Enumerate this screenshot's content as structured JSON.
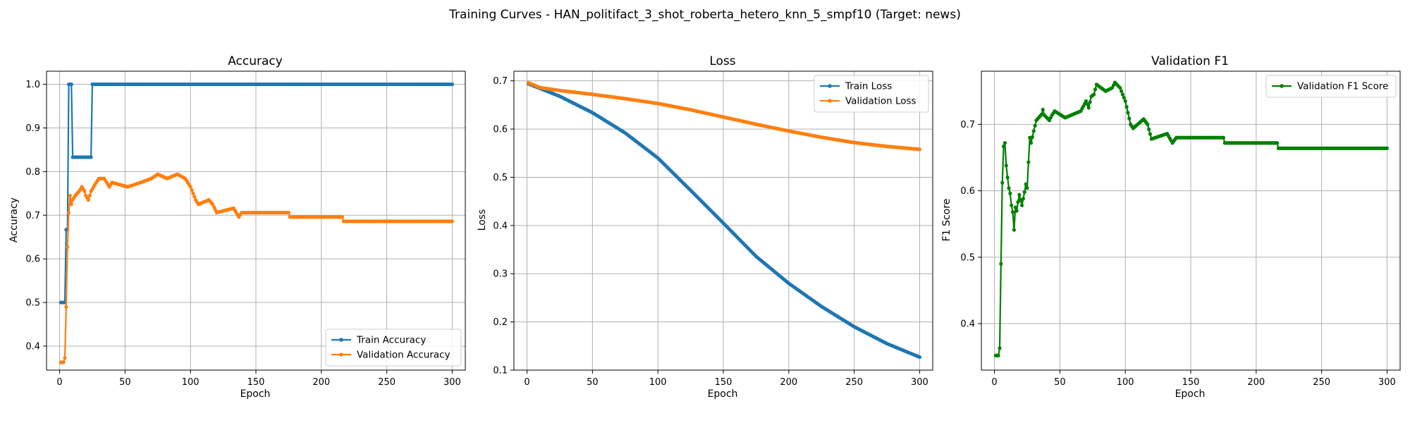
{
  "suptitle": "Training Curves - HAN_politifact_3_shot_roberta_hetero_knn_5_smpf10 (Target: news)",
  "chart_data": [
    {
      "type": "line",
      "title": "Accuracy",
      "xlabel": "Epoch",
      "ylabel": "Accuracy",
      "xlim": [
        -10,
        310
      ],
      "ylim": [
        0.345,
        1.03
      ],
      "xticks": [
        0,
        50,
        100,
        150,
        200,
        250,
        300
      ],
      "yticks": [
        0.4,
        0.5,
        0.6,
        0.7,
        0.8,
        0.9,
        1.0
      ],
      "ytick_labels": [
        "0.4",
        "0.5",
        "0.6",
        "0.7",
        "0.8",
        "0.9",
        "1.0"
      ],
      "grid": true,
      "legend_position": "lower-right",
      "series": [
        {
          "name": "Train Accuracy",
          "color": "#1f77b4",
          "points": [
            [
              1,
              0.5
            ],
            [
              4,
              0.5
            ],
            [
              5,
              0.667
            ],
            [
              6,
              0.667
            ],
            [
              7,
              1.0
            ],
            [
              9,
              1.0
            ],
            [
              10,
              0.833
            ],
            [
              24,
              0.833
            ],
            [
              25,
              1.0
            ],
            [
              300,
              1.0
            ]
          ]
        },
        {
          "name": "Validation Accuracy",
          "color": "#ff7f0e",
          "points": [
            [
              1,
              0.363
            ],
            [
              3,
              0.363
            ],
            [
              4,
              0.373
            ],
            [
              5,
              0.49
            ],
            [
              6,
              0.627
            ],
            [
              7,
              0.706
            ],
            [
              8,
              0.745
            ],
            [
              9,
              0.725
            ],
            [
              10,
              0.735
            ],
            [
              12,
              0.745
            ],
            [
              15,
              0.755
            ],
            [
              17,
              0.765
            ],
            [
              19,
              0.755
            ],
            [
              20,
              0.745
            ],
            [
              22,
              0.735
            ],
            [
              24,
              0.755
            ],
            [
              26,
              0.765
            ],
            [
              28,
              0.775
            ],
            [
              30,
              0.784
            ],
            [
              34,
              0.784
            ],
            [
              36,
              0.775
            ],
            [
              38,
              0.765
            ],
            [
              40,
              0.775
            ],
            [
              52,
              0.765
            ],
            [
              62,
              0.775
            ],
            [
              70,
              0.784
            ],
            [
              75,
              0.794
            ],
            [
              82,
              0.784
            ],
            [
              90,
              0.794
            ],
            [
              96,
              0.784
            ],
            [
              100,
              0.765
            ],
            [
              104,
              0.735
            ],
            [
              106,
              0.725
            ],
            [
              114,
              0.735
            ],
            [
              117,
              0.725
            ],
            [
              120,
              0.706
            ],
            [
              133,
              0.716
            ],
            [
              137,
              0.696
            ],
            [
              139,
              0.706
            ],
            [
              175,
              0.706
            ],
            [
              176,
              0.696
            ],
            [
              216,
              0.696
            ],
            [
              217,
              0.686
            ],
            [
              300,
              0.686
            ]
          ]
        }
      ]
    },
    {
      "type": "line",
      "title": "Loss",
      "xlabel": "Epoch",
      "ylabel": "Loss",
      "xlim": [
        -10,
        310
      ],
      "ylim": [
        0.1,
        0.72
      ],
      "xticks": [
        0,
        50,
        100,
        150,
        200,
        250,
        300
      ],
      "yticks": [
        0.1,
        0.2,
        0.3,
        0.4,
        0.5,
        0.6,
        0.7
      ],
      "ytick_labels": [
        "0.1",
        "0.2",
        "0.3",
        "0.4",
        "0.5",
        "0.6",
        "0.7"
      ],
      "grid": true,
      "legend_position": "upper-right",
      "series": [
        {
          "name": "Train Loss",
          "color": "#1f77b4",
          "points": [
            [
              1,
              0.694
            ],
            [
              25,
              0.668
            ],
            [
              50,
              0.634
            ],
            [
              75,
              0.592
            ],
            [
              100,
              0.54
            ],
            [
              125,
              0.473
            ],
            [
              150,
              0.405
            ],
            [
              175,
              0.336
            ],
            [
              200,
              0.28
            ],
            [
              225,
              0.232
            ],
            [
              250,
              0.19
            ],
            [
              275,
              0.155
            ],
            [
              300,
              0.127
            ]
          ]
        },
        {
          "name": "Validation Loss",
          "color": "#ff7f0e",
          "points": [
            [
              1,
              0.696
            ],
            [
              10,
              0.686
            ],
            [
              25,
              0.68
            ],
            [
              50,
              0.672
            ],
            [
              75,
              0.663
            ],
            [
              100,
              0.653
            ],
            [
              125,
              0.64
            ],
            [
              150,
              0.625
            ],
            [
              175,
              0.61
            ],
            [
              200,
              0.596
            ],
            [
              225,
              0.583
            ],
            [
              250,
              0.572
            ],
            [
              275,
              0.564
            ],
            [
              300,
              0.558
            ]
          ]
        }
      ]
    },
    {
      "type": "line",
      "title": "Validation F1",
      "xlabel": "Epoch",
      "ylabel": "F1 Score",
      "xlim": [
        -10,
        310
      ],
      "ylim": [
        0.33,
        0.78
      ],
      "xticks": [
        0,
        50,
        100,
        150,
        200,
        250,
        300
      ],
      "yticks": [
        0.4,
        0.5,
        0.6,
        0.7
      ],
      "ytick_labels": [
        "0.4",
        "0.5",
        "0.6",
        "0.7"
      ],
      "grid": true,
      "legend_position": "upper-right",
      "series": [
        {
          "name": "Validation F1 Score",
          "color": "#008000",
          "points": [
            [
              1,
              0.352
            ],
            [
              3,
              0.352
            ],
            [
              4,
              0.363
            ],
            [
              5,
              0.49
            ],
            [
              6,
              0.612
            ],
            [
              7,
              0.667
            ],
            [
              8,
              0.672
            ],
            [
              9,
              0.638
            ],
            [
              10,
              0.62
            ],
            [
              11,
              0.604
            ],
            [
              12,
              0.596
            ],
            [
              13,
              0.578
            ],
            [
              14,
              0.568
            ],
            [
              15,
              0.541
            ],
            [
              16,
              0.575
            ],
            [
              17,
              0.57
            ],
            [
              18,
              0.583
            ],
            [
              19,
              0.594
            ],
            [
              20,
              0.586
            ],
            [
              21,
              0.578
            ],
            [
              22,
              0.588
            ],
            [
              23,
              0.598
            ],
            [
              24,
              0.61
            ],
            [
              25,
              0.604
            ],
            [
              26,
              0.643
            ],
            [
              27,
              0.68
            ],
            [
              28,
              0.672
            ],
            [
              30,
              0.69
            ],
            [
              32,
              0.706
            ],
            [
              36,
              0.715
            ],
            [
              37,
              0.722
            ],
            [
              38,
              0.714
            ],
            [
              42,
              0.706
            ],
            [
              44,
              0.714
            ],
            [
              46,
              0.72
            ],
            [
              54,
              0.71
            ],
            [
              66,
              0.72
            ],
            [
              70,
              0.735
            ],
            [
              72,
              0.725
            ],
            [
              74,
              0.742
            ],
            [
              76,
              0.745
            ],
            [
              78,
              0.76
            ],
            [
              85,
              0.75
            ],
            [
              90,
              0.755
            ],
            [
              92,
              0.763
            ],
            [
              96,
              0.755
            ],
            [
              100,
              0.735
            ],
            [
              104,
              0.7
            ],
            [
              106,
              0.694
            ],
            [
              114,
              0.708
            ],
            [
              117,
              0.7
            ],
            [
              120,
              0.678
            ],
            [
              132,
              0.686
            ],
            [
              136,
              0.672
            ],
            [
              139,
              0.68
            ],
            [
              175,
              0.68
            ],
            [
              176,
              0.672
            ],
            [
              216,
              0.672
            ],
            [
              217,
              0.664
            ],
            [
              300,
              0.664
            ]
          ]
        }
      ]
    }
  ]
}
